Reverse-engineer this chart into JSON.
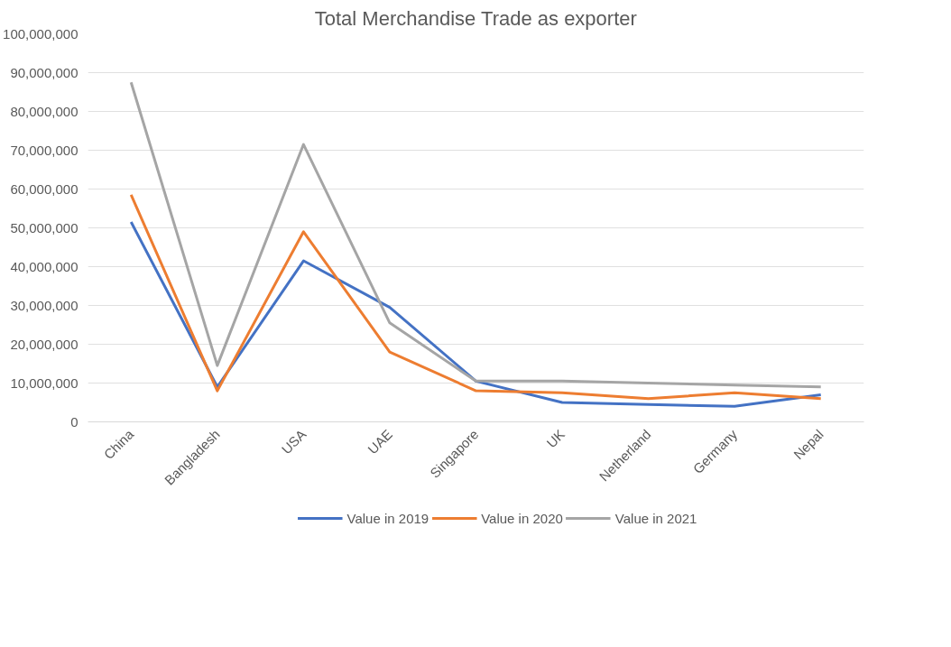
{
  "chart_data": {
    "type": "line",
    "title": "Total Merchandise Trade as exporter",
    "categories": [
      "China",
      "Bangladesh",
      "USA",
      "UAE",
      "Singapore",
      "UK",
      "Netherland",
      "Germany",
      "Nepal"
    ],
    "series": [
      {
        "name": "Value in 2019",
        "color": "#4472c4",
        "values": [
          51500000,
          9000000,
          41500000,
          29500000,
          10500000,
          5000000,
          4500000,
          4000000,
          7000000
        ]
      },
      {
        "name": "Value in 2020",
        "color": "#ed7d31",
        "values": [
          58500000,
          8000000,
          49000000,
          18000000,
          8000000,
          7500000,
          6000000,
          7500000,
          6000000
        ]
      },
      {
        "name": "Value in 2021",
        "color": "#a5a5a5",
        "values": [
          87500000,
          14500000,
          71500000,
          25500000,
          10500000,
          10500000,
          10000000,
          9500000,
          9000000
        ]
      }
    ],
    "ylim": [
      0,
      100000000
    ],
    "yticks": [
      {
        "value": 0,
        "label": "0"
      },
      {
        "value": 10000000,
        "label": "10,000,000"
      },
      {
        "value": 20000000,
        "label": "20,000,000"
      },
      {
        "value": 30000000,
        "label": "30,000,000"
      },
      {
        "value": 40000000,
        "label": "40,000,000"
      },
      {
        "value": 50000000,
        "label": "50,000,000"
      },
      {
        "value": 60000000,
        "label": "60,000,000"
      },
      {
        "value": 70000000,
        "label": "70,000,000"
      },
      {
        "value": 80000000,
        "label": "80,000,000"
      },
      {
        "value": 90000000,
        "label": "90,000,000"
      },
      {
        "value": 100000000,
        "label": "100,000,000"
      }
    ],
    "grid": "y",
    "legend": "bottom",
    "marker": "none",
    "line_style": "solid"
  }
}
